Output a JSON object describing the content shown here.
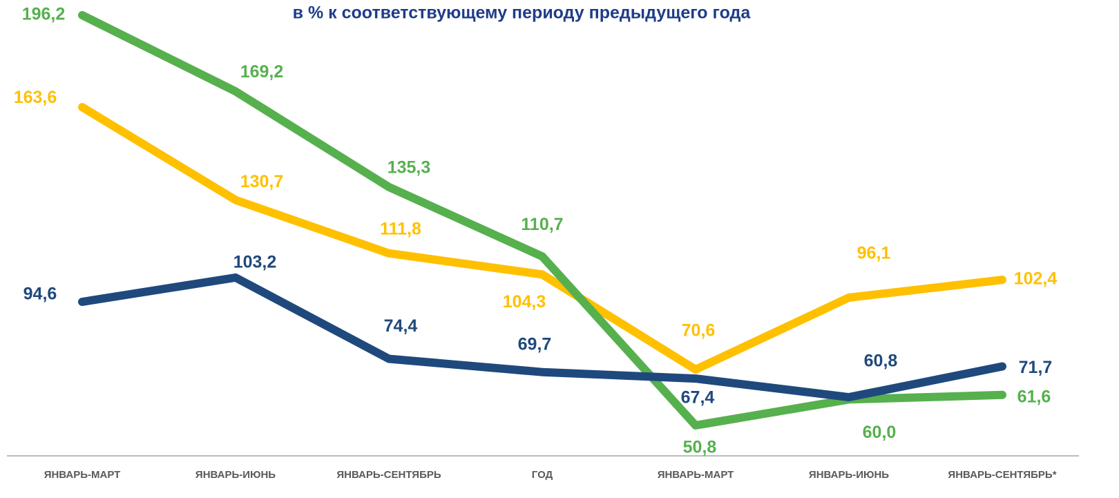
{
  "chart_data": {
    "type": "line",
    "title": "в % к соответствующему периоду предыдущего года",
    "categories": [
      "ЯНВАРЬ-МАРТ",
      "ЯНВАРЬ-ИЮНЬ",
      "ЯНВАРЬ-СЕНТЯБРЬ",
      "ГОД",
      "ЯНВАРЬ-МАРТ",
      "ЯНВАРЬ-ИЮНЬ",
      "ЯНВАРЬ-СЕНТЯБРЬ*"
    ],
    "ylim": [
      40,
      200
    ],
    "series": [
      {
        "color": "#ffc000",
        "values": [
          163.6,
          130.7,
          111.8,
          104.3,
          70.6,
          96.1,
          102.4
        ],
        "value_labels": [
          "163,6",
          "130,7",
          "111,8",
          "104,3",
          "70,6",
          "96,1",
          "102,4"
        ]
      },
      {
        "color": "#56b04e",
        "values": [
          196.2,
          169.2,
          135.3,
          110.7,
          50.8,
          60.0,
          61.6
        ],
        "value_labels": [
          "196,2",
          "169,2",
          "135,3",
          "110,7",
          "50,8",
          "60,0",
          "61,6"
        ]
      },
      {
        "color": "#1f497d",
        "values": [
          94.6,
          103.2,
          74.4,
          69.7,
          67.4,
          60.8,
          71.7
        ],
        "value_labels": [
          "94,6",
          "103,2",
          "74,4",
          "69,7",
          "67,4",
          "60,8",
          "71,7"
        ]
      }
    ]
  }
}
